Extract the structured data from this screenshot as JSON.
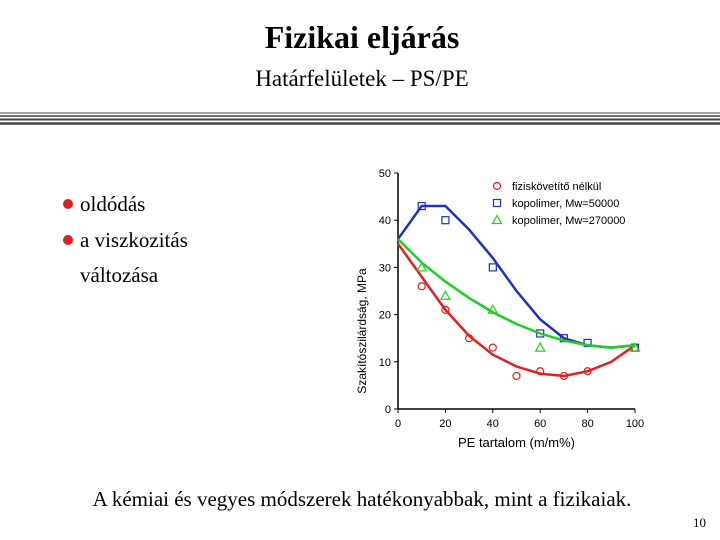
{
  "slide": {
    "title": "Fizikai eljárás",
    "subtitle": "Határfelületek – PS/PE",
    "bullets": [
      "oldódás",
      "a viszkozitás",
      "változása"
    ],
    "caption": "A kémiai és vegyes módszerek hatékonyabbak, mint a fizikaiak.",
    "page_number": "10"
  },
  "chart_data": {
    "type": "scatter",
    "xlabel": "PE tartalom (m/m%)",
    "ylabel": "Szakítószilárdság, MPa",
    "xlim": [
      0,
      100
    ],
    "xticks": [
      0,
      20,
      40,
      60,
      80,
      100
    ],
    "ylim": [
      0,
      50
    ],
    "yticks": [
      0,
      10,
      20,
      30,
      40,
      50
    ],
    "series": [
      {
        "name": "fiziskövetítő nélkül",
        "color": "#e02020",
        "marker": "circle",
        "x": [
          10,
          20,
          30,
          40,
          50,
          60,
          70,
          80,
          100
        ],
        "values": [
          26,
          21,
          15,
          13,
          7,
          8,
          7,
          8,
          13
        ],
        "fit": {
          "x": [
            0,
            10,
            20,
            30,
            40,
            50,
            60,
            70,
            80,
            90,
            100
          ],
          "values": [
            35,
            28,
            21,
            15.5,
            11.5,
            9,
            7.5,
            7,
            8,
            10,
            13.5
          ]
        }
      },
      {
        "name": "kopolimer, Mw=50000",
        "color": "#2030c0",
        "marker": "square",
        "x": [
          10,
          20,
          40,
          60,
          70,
          80,
          100
        ],
        "values": [
          43,
          40,
          30,
          16,
          15,
          14,
          13
        ],
        "fit": {
          "x": [
            0,
            10,
            20,
            30,
            40,
            50,
            60,
            70,
            80,
            90,
            100
          ],
          "values": [
            36,
            43,
            43,
            38,
            32,
            25,
            19,
            15,
            13.5,
            13,
            13.5
          ]
        }
      },
      {
        "name": "kopolimer, Mw=270000",
        "color": "#20d020",
        "marker": "triangle",
        "x": [
          10,
          20,
          40,
          60,
          100
        ],
        "values": [
          30,
          24,
          21,
          13,
          13
        ],
        "fit": {
          "x": [
            0,
            10,
            20,
            30,
            40,
            50,
            60,
            70,
            80,
            90,
            100
          ],
          "values": [
            36,
            31,
            27,
            23.5,
            20.5,
            18,
            16,
            14.5,
            13.5,
            13,
            13.5
          ]
        }
      }
    ]
  }
}
